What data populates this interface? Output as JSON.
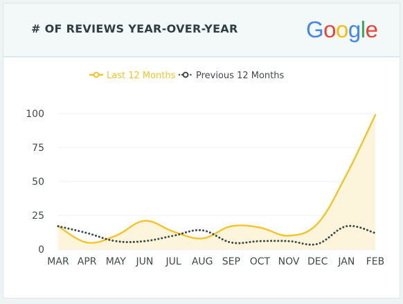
{
  "header": {
    "title": "# OF REVIEWS YEAR-OVER-YEAR",
    "logo_letters": [
      {
        "ch": "G",
        "color": "#4285F4"
      },
      {
        "ch": "o",
        "color": "#EA4335"
      },
      {
        "ch": "o",
        "color": "#FBBC05"
      },
      {
        "ch": "g",
        "color": "#4285F4"
      },
      {
        "ch": "l",
        "color": "#34A853"
      },
      {
        "ch": "e",
        "color": "#EA4335"
      }
    ]
  },
  "colors": {
    "series_current": "#F6C324",
    "series_previous": "#3A4A45",
    "area_fill": "#FDF4DC",
    "grid": "#EEF2F2",
    "axis": "#D9E0E0",
    "tick_text": "#404849"
  },
  "chart_data": {
    "type": "line",
    "categories": [
      "MAR",
      "APR",
      "MAY",
      "JUN",
      "JUL",
      "AUG",
      "SEP",
      "OCT",
      "NOV",
      "DEC",
      "JAN",
      "FEB"
    ],
    "series": [
      {
        "name": "Last 12 Months",
        "values": [
          17,
          5,
          10,
          21,
          13,
          8,
          17,
          16,
          10,
          19,
          55,
          99
        ],
        "style": "solid",
        "area_fill": true
      },
      {
        "name": "Previous 12 Months",
        "values": [
          17,
          12,
          6,
          6,
          10,
          14,
          5,
          6,
          6,
          4,
          17,
          12
        ],
        "style": "dotted",
        "area_fill": false
      }
    ],
    "yticks": [
      0,
      25,
      50,
      75,
      100
    ],
    "ylim": [
      0,
      100
    ],
    "xlabel": "",
    "ylabel": "",
    "grid": true,
    "legend_position": "top"
  }
}
